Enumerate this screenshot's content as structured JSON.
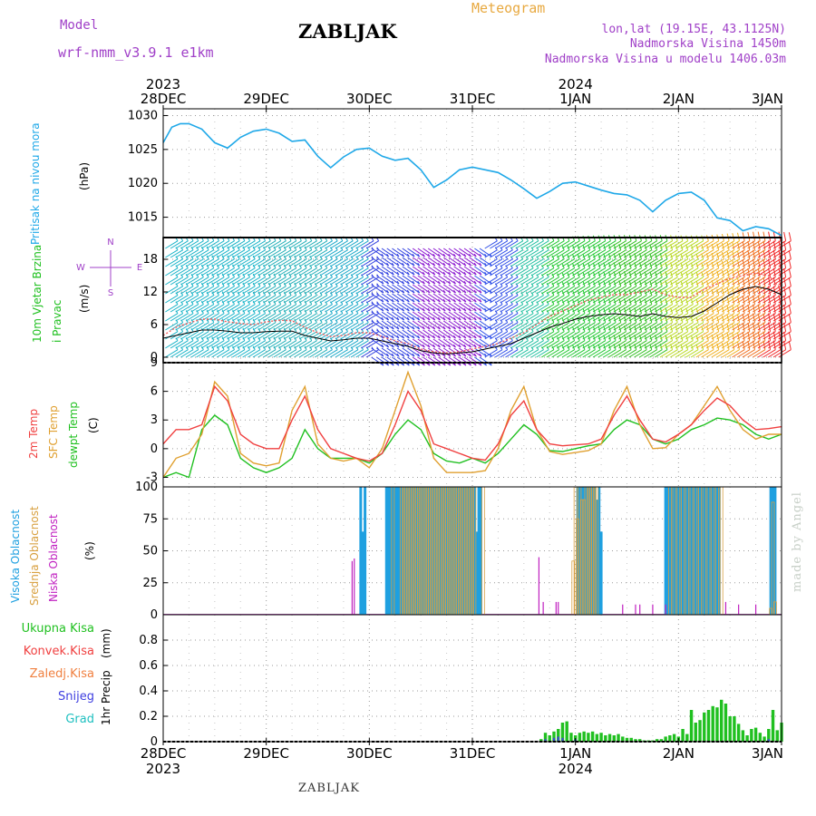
{
  "header": {
    "model_label": "Model",
    "model_version": "wrf-nmm_v3.9.1 e1km",
    "station": "ZABLJAK",
    "product": "Meteogram",
    "lonlat": "lon,lat (19.15E, 43.1125N)",
    "elevation": "Nadmorska Visina 1450m",
    "elevation_model": "Nadmorska Visina u modelu 1406.03m"
  },
  "footer": {
    "station": "ZABLJAK",
    "credit": "made by Angel"
  },
  "colors": {
    "pressure": "#1fa8e8",
    "t2m": "#f04040",
    "sfc_temp": "#e0a030",
    "dewpt": "#20c020",
    "high_cloud": "#1fa0e0",
    "mid_cloud": "#d8a040",
    "low_cloud": "#c020c0",
    "precip_total": "#20c020",
    "precip_convective": "#f04040",
    "precip_freezing": "#f08040",
    "snow": "#4040e0",
    "graupel": "#20c0c0",
    "panel_titles_model": "#a040c8"
  },
  "chart_data": [
    {
      "type": "line",
      "panel": "pressure",
      "ylabel_title": "Pritisak na nivou mora",
      "ylabel_unit": "(hPa)",
      "ylim": [
        1012,
        1031
      ],
      "yticks": [
        1015,
        1020,
        1025,
        1030
      ],
      "grid": true,
      "x_hours": [
        0,
        2,
        4,
        6,
        9,
        12,
        15,
        18,
        21,
        24,
        27,
        30,
        33,
        36,
        39,
        42,
        45,
        48,
        51,
        54,
        57,
        60,
        63,
        66,
        69,
        72,
        75,
        78,
        81,
        84,
        87,
        90,
        93,
        96,
        99,
        102,
        105,
        108,
        111,
        114,
        117,
        120,
        123,
        126,
        129,
        132,
        135,
        138,
        141,
        144
      ],
      "series": [
        {
          "values": [
            1026.0,
            1028.3,
            1028.8,
            1028.8,
            1028.0,
            1026.0,
            1025.2,
            1026.8,
            1027.7,
            1028.0,
            1027.4,
            1026.2,
            1026.4,
            1024.0,
            1022.3,
            1023.9,
            1025.0,
            1025.2,
            1024.0,
            1023.4,
            1023.7,
            1022.0,
            1019.4,
            1020.5,
            1022.0,
            1022.4,
            1022.0,
            1021.6,
            1020.5,
            1019.2,
            1017.8,
            1018.8,
            1020.0,
            1020.2,
            1019.6,
            1019.0,
            1018.5,
            1018.3,
            1017.5,
            1015.8,
            1017.5,
            1018.5,
            1018.7,
            1017.5,
            1014.9,
            1014.5,
            1013.0,
            1013.6,
            1013.3,
            1012.3
          ]
        }
      ]
    },
    {
      "type": "line",
      "panel": "wind",
      "ylabel_title": "10m Vjetar Brzina i Pravac",
      "ylabel_unit": "(m/s)",
      "compass": "N S E W",
      "ylim": [
        -1,
        22
      ],
      "yticks": [
        0,
        6,
        12,
        18
      ],
      "grid": true,
      "x_hours": [
        0,
        3,
        6,
        9,
        12,
        15,
        18,
        21,
        24,
        27,
        30,
        33,
        36,
        39,
        42,
        45,
        48,
        51,
        54,
        57,
        60,
        63,
        66,
        69,
        72,
        75,
        78,
        81,
        84,
        87,
        90,
        93,
        96,
        99,
        102,
        105,
        108,
        111,
        114,
        117,
        120,
        123,
        126,
        129,
        132,
        135,
        138,
        141,
        144
      ],
      "series": [
        {
          "name": "gust",
          "color": "#f06060",
          "values": [
            4.0,
            5.5,
            6.3,
            7.0,
            7.0,
            6.5,
            6.2,
            6.0,
            6.5,
            6.8,
            6.7,
            5.5,
            4.5,
            3.8,
            4.0,
            4.5,
            4.5,
            3.8,
            3.0,
            2.5,
            1.5,
            1.0,
            0.8,
            1.0,
            1.5,
            2.0,
            2.5,
            3.5,
            4.5,
            6.0,
            7.5,
            8.5,
            9.5,
            10.5,
            11.0,
            11.5,
            11.5,
            12.0,
            12.5,
            11.5,
            11.0,
            11.0,
            12.5,
            13.5,
            14.5,
            15.0,
            15.5,
            15.0,
            12.5
          ]
        },
        {
          "name": "speed",
          "color": "#000000",
          "values": [
            3.5,
            4.0,
            4.5,
            5.0,
            5.0,
            4.8,
            4.5,
            4.5,
            4.7,
            4.8,
            4.8,
            4.0,
            3.5,
            3.0,
            3.2,
            3.5,
            3.5,
            3.0,
            2.5,
            2.0,
            1.2,
            0.8,
            0.6,
            0.8,
            1.0,
            1.5,
            2.0,
            2.5,
            3.5,
            4.5,
            5.5,
            6.2,
            7.0,
            7.5,
            7.8,
            8.0,
            7.8,
            7.5,
            8.0,
            7.5,
            7.3,
            7.5,
            8.5,
            10.0,
            11.5,
            12.5,
            13.0,
            12.5,
            11.5
          ]
        }
      ],
      "barbs": "wind barbs coloured by speed (cyan/teal → blue/purple → green → yellow/orange/red)"
    },
    {
      "type": "line",
      "panel": "temperature",
      "ylabel_titles": [
        "2m Temp",
        "SFC Temp",
        "dewpt Temp"
      ],
      "ylabel_unit": "(C)",
      "ylim": [
        -4,
        9
      ],
      "yticks": [
        -3,
        0,
        3,
        6,
        9
      ],
      "grid": true,
      "x_hours": [
        0,
        3,
        6,
        9,
        12,
        15,
        18,
        21,
        24,
        27,
        30,
        33,
        36,
        39,
        42,
        45,
        48,
        51,
        54,
        57,
        60,
        63,
        66,
        69,
        72,
        75,
        78,
        81,
        84,
        87,
        90,
        93,
        96,
        99,
        102,
        105,
        108,
        111,
        114,
        117,
        120,
        123,
        126,
        129,
        132,
        135,
        138,
        141,
        144
      ],
      "series": [
        {
          "name": "2m Temp",
          "values": [
            0.5,
            2.0,
            2.0,
            2.5,
            6.5,
            5.0,
            1.5,
            0.5,
            0.0,
            0.0,
            3.0,
            5.5,
            2.0,
            0.0,
            -0.5,
            -1.0,
            -1.3,
            -0.5,
            2.5,
            6.0,
            4.0,
            0.5,
            0.0,
            -0.5,
            -1.0,
            -1.2,
            0.5,
            3.5,
            5.0,
            2.0,
            0.5,
            0.3,
            0.4,
            0.5,
            1.0,
            3.5,
            5.5,
            3.0,
            1.0,
            0.7,
            1.5,
            2.5,
            4.0,
            5.3,
            4.5,
            3.0,
            2.0,
            2.1,
            2.3
          ]
        },
        {
          "name": "SFC Temp",
          "values": [
            -3.0,
            -1.0,
            -0.5,
            1.5,
            7.0,
            5.5,
            -0.5,
            -1.5,
            -1.8,
            -1.5,
            4.0,
            6.5,
            0.5,
            -1.0,
            -1.3,
            -1.0,
            -2.0,
            0.0,
            4.0,
            8.0,
            4.5,
            -1.0,
            -2.5,
            -2.5,
            -2.5,
            -2.3,
            0.0,
            4.0,
            6.5,
            2.0,
            -0.3,
            -0.6,
            -0.4,
            -0.2,
            0.5,
            4.0,
            6.5,
            2.5,
            0.0,
            0.1,
            1.5,
            2.5,
            4.5,
            6.5,
            4.0,
            2.0,
            1.0,
            1.5,
            1.5
          ]
        },
        {
          "name": "dewpt Temp",
          "values": [
            -3.0,
            -2.5,
            -3.0,
            2.0,
            3.5,
            2.5,
            -1.0,
            -2.0,
            -2.5,
            -2.0,
            -1.0,
            2.0,
            0.0,
            -1.0,
            -1.0,
            -1.0,
            -1.5,
            -0.5,
            1.5,
            3.0,
            2.0,
            -0.5,
            -1.3,
            -1.5,
            -1.0,
            -1.5,
            -0.5,
            1.0,
            2.5,
            1.5,
            -0.2,
            -0.3,
            0.0,
            0.3,
            0.5,
            2.0,
            3.0,
            2.5,
            1.0,
            0.5,
            1.0,
            2.0,
            2.5,
            3.2,
            3.0,
            2.5,
            1.5,
            1.0,
            1.5
          ]
        }
      ]
    },
    {
      "type": "bar",
      "panel": "clouds",
      "ylabel_titles": [
        "Visoka Oblacnost",
        "Srednja Oblacnost",
        "Niska Oblacnost"
      ],
      "ylabel_unit": "(%)",
      "ylim": [
        0,
        100
      ],
      "yticks": [
        0,
        25,
        50,
        75,
        100
      ],
      "grid": true,
      "series": [
        {
          "name": "Visoka Oblacnost",
          "x_hours": [
            46,
            46.5,
            47,
            52,
            52.5,
            53,
            53.5,
            54,
            54.5,
            55,
            55.5,
            56,
            56.5,
            57,
            57.5,
            58,
            58.5,
            59,
            59.5,
            60,
            60.5,
            61,
            61.5,
            62,
            62.5,
            63,
            63.5,
            64,
            64.5,
            65,
            65.5,
            66,
            66.5,
            67,
            67.5,
            68,
            68.5,
            69,
            69.5,
            70,
            70.5,
            71,
            71.5,
            72,
            72.5,
            73,
            73.5,
            74,
            96.5,
            97,
            97.5,
            98,
            98.5,
            99,
            99.5,
            100,
            100.5,
            101,
            101.5,
            102,
            117,
            117.5,
            118,
            118.5,
            119,
            119.5,
            120,
            120.5,
            121,
            121.5,
            122,
            122.5,
            123,
            123.5,
            124,
            124.5,
            125,
            125.5,
            126,
            126.5,
            127,
            127.5,
            128,
            128.5,
            129,
            129.5,
            141.5,
            142,
            142.5
          ],
          "values": [
            100,
            65,
            100,
            100,
            100,
            100,
            100,
            100,
            100,
            100,
            100,
            100,
            100,
            100,
            100,
            100,
            100,
            100,
            100,
            100,
            100,
            100,
            100,
            100,
            100,
            100,
            100,
            100,
            100,
            100,
            100,
            100,
            100,
            100,
            100,
            100,
            100,
            100,
            100,
            100,
            100,
            100,
            100,
            100,
            100,
            65,
            100,
            100,
            100,
            100,
            100,
            100,
            100,
            100,
            100,
            100,
            100,
            90,
            100,
            65,
            100,
            100,
            100,
            100,
            100,
            100,
            100,
            100,
            100,
            100,
            100,
            100,
            100,
            100,
            100,
            100,
            100,
            100,
            100,
            100,
            100,
            100,
            100,
            100,
            100,
            100,
            100,
            100,
            100
          ]
        },
        {
          "name": "Srednja Oblacnost",
          "x_hours": [
            53.5,
            55.5,
            56,
            56.5,
            57,
            57.5,
            58,
            58.5,
            59,
            59.5,
            60,
            60.5,
            61,
            61.5,
            62,
            62.5,
            63,
            63.5,
            64,
            64.5,
            65,
            65.5,
            66,
            66.5,
            67,
            67.5,
            68,
            68.5,
            69,
            69.5,
            70,
            70.5,
            71,
            71.5,
            72,
            72.5,
            74.5,
            95.5,
            96,
            96.5,
            97,
            97.5,
            98,
            98.5,
            99,
            99.5,
            100,
            100.5,
            101,
            118,
            119,
            120,
            121,
            122,
            123,
            124,
            125,
            126,
            127,
            128,
            129,
            130,
            141.5,
            142,
            142.5
          ],
          "values": [
            100,
            100,
            100,
            100,
            100,
            100,
            100,
            100,
            100,
            100,
            100,
            100,
            100,
            100,
            100,
            100,
            100,
            100,
            100,
            100,
            100,
            100,
            100,
            100,
            100,
            100,
            100,
            100,
            100,
            100,
            100,
            100,
            100,
            100,
            100,
            100,
            100,
            42,
            100,
            75,
            100,
            90,
            90,
            100,
            100,
            100,
            100,
            100,
            100,
            100,
            100,
            100,
            100,
            100,
            100,
            100,
            100,
            100,
            100,
            100,
            100,
            100,
            5,
            88,
            10
          ]
        },
        {
          "name": "Niska Oblacnost",
          "x_hours": [
            44,
            44.5,
            87.5,
            88.5,
            91.5,
            92,
            107,
            110,
            111,
            114,
            117,
            131,
            134,
            138
          ],
          "values": [
            42,
            44,
            45,
            10,
            10,
            10,
            8,
            8,
            8,
            8,
            8,
            10,
            8,
            8
          ]
        }
      ]
    },
    {
      "type": "bar",
      "panel": "precipitation",
      "ylabel_title": "1hr Precip",
      "ylabel_unit": "(mm)",
      "legend": [
        "Ukupna Kisa",
        "Konvek.Kisa",
        "Zaledj.Kisa",
        "Snijeg",
        "Grad"
      ],
      "ylim": [
        0,
        1
      ],
      "yticks": [
        0,
        0.2,
        0.4,
        0.6,
        0.8
      ],
      "grid": true,
      "series": [
        {
          "name": "Ukupna Kisa",
          "x_hours": [
            88,
            89,
            90,
            91,
            92,
            93,
            94,
            95,
            96,
            97,
            98,
            99,
            100,
            101,
            102,
            103,
            104,
            105,
            106,
            107,
            108,
            109,
            110,
            111,
            112,
            113,
            114,
            115,
            116,
            117,
            118,
            119,
            120,
            121,
            122,
            123,
            124,
            125,
            126,
            127,
            128,
            129,
            130,
            131,
            132,
            133,
            134,
            135,
            136,
            137,
            138,
            139,
            140,
            141,
            142,
            143,
            144
          ],
          "values": [
            0.02,
            0.07,
            0.05,
            0.08,
            0.1,
            0.15,
            0.16,
            0.07,
            0.05,
            0.07,
            0.08,
            0.07,
            0.08,
            0.06,
            0.07,
            0.05,
            0.06,
            0.05,
            0.06,
            0.04,
            0.03,
            0.03,
            0.02,
            0.02,
            0.01,
            0.01,
            0.01,
            0.02,
            0.02,
            0.04,
            0.05,
            0.06,
            0.04,
            0.1,
            0.06,
            0.25,
            0.15,
            0.17,
            0.23,
            0.25,
            0.28,
            0.27,
            0.33,
            0.3,
            0.2,
            0.2,
            0.14,
            0.09,
            0.05,
            0.1,
            0.11,
            0.07,
            0.04,
            0.1,
            0.25,
            0.09,
            0.15
          ]
        },
        {
          "name": "Konvek.Kisa",
          "x_hours": [],
          "values": []
        },
        {
          "name": "Zaledj.Kisa",
          "x_hours": [],
          "values": []
        },
        {
          "name": "Snijeg",
          "x_hours": [
            89,
            91,
            92,
            93,
            96,
            141
          ],
          "values": [
            0.02,
            0.03,
            0.04,
            0.03,
            0.02,
            0.02
          ]
        },
        {
          "name": "Grad",
          "x_hours": [],
          "values": []
        }
      ]
    }
  ],
  "time_axis": {
    "start": "2023-12-28 00:00",
    "xlim_hours": [
      0,
      144
    ],
    "year_top_left": "2023",
    "year_top_mid": "2024",
    "year_bottom_left": "2023",
    "year_bottom_mid": "2024",
    "ticks": [
      {
        "hour": 0,
        "label": "28DEC"
      },
      {
        "hour": 24,
        "label": "29DEC"
      },
      {
        "hour": 48,
        "label": "30DEC"
      },
      {
        "hour": 72,
        "label": "31DEC"
      },
      {
        "hour": 96,
        "label": "1JAN"
      },
      {
        "hour": 120,
        "label": "2JAN"
      },
      {
        "hour": 144,
        "label": "3JAN"
      }
    ]
  }
}
